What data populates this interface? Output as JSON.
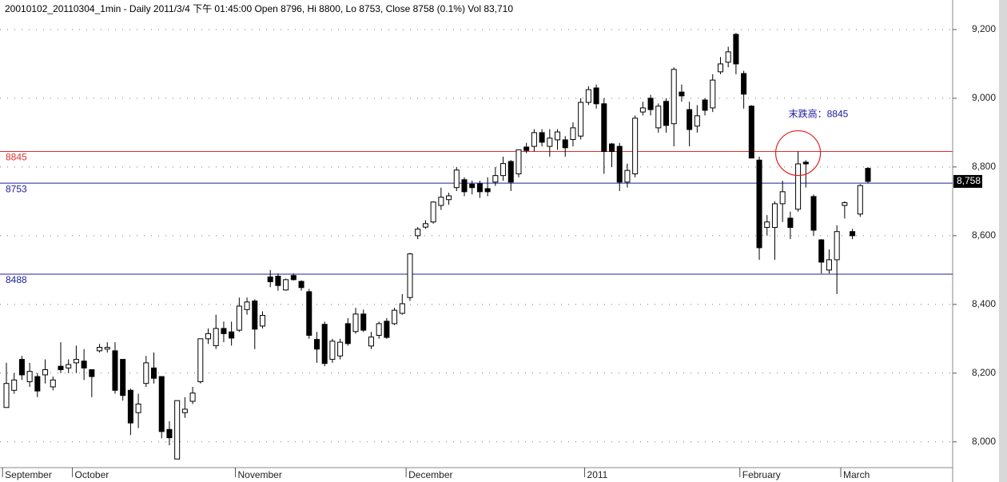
{
  "chart_data": {
    "type": "candlestick",
    "title": "20010102_20110304_1min - Daily 2011/3/4 下午 01:45:00 Open 8796, Hi 8800, Lo 8753, Close 8758 (0.1%) Vol 83,710",
    "categories": [
      "September",
      null,
      null,
      null,
      null,
      null,
      null,
      null,
      null,
      "October",
      null,
      null,
      null,
      null,
      null,
      null,
      null,
      null,
      null,
      null,
      null,
      null,
      null,
      null,
      null,
      null,
      null,
      null,
      null,
      null,
      "November",
      null,
      null,
      null,
      null,
      null,
      null,
      null,
      null,
      null,
      null,
      null,
      null,
      null,
      null,
      null,
      null,
      null,
      null,
      null,
      null,
      null,
      "December",
      null,
      null,
      null,
      null,
      null,
      null,
      null,
      null,
      null,
      null,
      null,
      null,
      null,
      null,
      null,
      null,
      null,
      null,
      null,
      null,
      null,
      null,
      "2011",
      null,
      null,
      null,
      null,
      null,
      null,
      null,
      null,
      null,
      null,
      null,
      null,
      null,
      null,
      null,
      null,
      null,
      null,
      null,
      "February",
      null,
      null,
      null,
      null,
      null,
      null,
      null,
      null,
      null,
      null,
      null,
      null,
      "March",
      null,
      null,
      null
    ],
    "open": [
      8100,
      8150,
      8240,
      8175,
      8190,
      8195,
      8160,
      8220,
      8215,
      8230,
      8235,
      8210,
      8265,
      8270,
      8265,
      8240,
      8150,
      8085,
      8170,
      8215,
      8190,
      8036,
      7950,
      8085,
      8118,
      8175,
      8300,
      8280,
      8330,
      8320,
      8325,
      8385,
      8410,
      8337,
      8480,
      8482,
      8442,
      8484,
      8467,
      8437,
      8298,
      8342,
      8240,
      8250,
      8344,
      8321,
      8372,
      8279,
      8310,
      8351,
      8344,
      8374,
      8420,
      8600,
      8625,
      8640,
      8688,
      8705,
      8740,
      8763,
      8750,
      8751,
      8737,
      8756,
      8775,
      8816,
      8780,
      8858,
      8860,
      8900,
      8860,
      8879,
      8879,
      8880,
      8890,
      8988,
      9030,
      8984,
      8867,
      8860,
      8756,
      8780,
      8960,
      9000,
      8914,
      8991,
      8926,
      9018,
      8967,
      8919,
      8995,
      8972,
      9077,
      9105,
      9186,
      9072,
      8977,
      8820,
      8624,
      8624,
      8693,
      8651,
      8677,
      8814,
      8714,
      8588,
      8500,
      8530,
      8688,
      8612,
      8663,
      8796
    ],
    "high": [
      8230,
      8200,
      8250,
      8230,
      8200,
      8240,
      8190,
      8290,
      8240,
      8280,
      8270,
      8210,
      8285,
      8290,
      8290,
      8240,
      8155,
      8140,
      8250,
      8260,
      8190,
      8060,
      8120,
      8130,
      8160,
      8300,
      8330,
      8370,
      8350,
      8350,
      8420,
      8420,
      8415,
      8380,
      8500,
      8490,
      8475,
      8490,
      8470,
      8445,
      8320,
      8350,
      8300,
      8300,
      8360,
      8390,
      8385,
      8320,
      8350,
      8360,
      8390,
      8430,
      8550,
      8625,
      8645,
      8700,
      8740,
      8725,
      8800,
      8770,
      8760,
      8760,
      8770,
      8800,
      8830,
      8820,
      8850,
      8870,
      8910,
      8910,
      8910,
      8910,
      8890,
      8930,
      9000,
      9035,
      9040,
      9000,
      8870,
      8870,
      8810,
      8950,
      8990,
      9010,
      8985,
      9000,
      9090,
      9040,
      8990,
      8980,
      9000,
      9070,
      9120,
      9150,
      9190,
      9080,
      8980,
      8830,
      8660,
      8700,
      8760,
      8670,
      8845,
      8820,
      8720,
      8590,
      8560,
      8630,
      8700,
      8620,
      8750,
      8800
    ],
    "low": [
      8100,
      8140,
      8180,
      8160,
      8130,
      8170,
      8150,
      8200,
      8200,
      8200,
      8180,
      8130,
      8260,
      8260,
      8140,
      8120,
      8020,
      8040,
      8160,
      8170,
      8010,
      7990,
      7950,
      8070,
      8110,
      8170,
      8285,
      8270,
      8290,
      8280,
      8320,
      8370,
      8270,
      8330,
      8450,
      8440,
      8440,
      8470,
      8440,
      8300,
      8230,
      8220,
      8230,
      8240,
      8280,
      8315,
      8320,
      8270,
      8300,
      8300,
      8340,
      8370,
      8410,
      8590,
      8620,
      8635,
      8675,
      8690,
      8730,
      8715,
      8720,
      8710,
      8715,
      8745,
      8760,
      8730,
      8770,
      8840,
      8845,
      8860,
      8830,
      8850,
      8830,
      8860,
      8880,
      8980,
      8970,
      8780,
      8800,
      8730,
      8740,
      8770,
      8950,
      8950,
      8900,
      8900,
      8860,
      8990,
      8860,
      8900,
      8950,
      8960,
      9070,
      9090,
      9070,
      8970,
      8826,
      8530,
      8600,
      8530,
      8640,
      8590,
      8670,
      8740,
      8600,
      8490,
      8490,
      8430,
      8650,
      8590,
      8655,
      8753
    ],
    "close": [
      8170,
      8180,
      8195,
      8205,
      8148,
      8210,
      8180,
      8210,
      8225,
      8240,
      8215,
      8190,
      8275,
      8275,
      8150,
      8135,
      8055,
      8110,
      8230,
      8185,
      8030,
      8012,
      8120,
      8095,
      8142,
      8300,
      8315,
      8330,
      8315,
      8302,
      8395,
      8407,
      8328,
      8368,
      8466,
      8455,
      8472,
      8472,
      8449,
      8310,
      8270,
      8228,
      8293,
      8290,
      8286,
      8372,
      8325,
      8305,
      8344,
      8304,
      8383,
      8402,
      8547,
      8619,
      8635,
      8698,
      8712,
      8716,
      8791,
      8728,
      8740,
      8728,
      8728,
      8775,
      8810,
      8756,
      8850,
      8848,
      8900,
      8872,
      8884,
      8902,
      8856,
      8914,
      8988,
      9025,
      8984,
      8845,
      8845,
      8756,
      8790,
      8942,
      8972,
      8967,
      8977,
      8921,
      9084,
      9007,
      8909,
      8949,
      8965,
      9053,
      9100,
      9135,
      9100,
      9012,
      8826,
      8565,
      8640,
      8693,
      8728,
      8624,
      8809,
      8809,
      8616,
      8523,
      8530,
      8612,
      8696,
      8600,
      8746,
      8758
    ],
    "ylim": [
      7925,
      9286
    ],
    "yticks": [
      {
        "value": 8000,
        "label": "8,000"
      },
      {
        "value": 8200,
        "label": "8,200"
      },
      {
        "value": 8400,
        "label": "8,400"
      },
      {
        "value": 8600,
        "label": "8,600"
      },
      {
        "value": 8800,
        "label": "8,800"
      },
      {
        "value": 9000,
        "label": "9,000"
      },
      {
        "value": 9200,
        "label": "9,200"
      }
    ],
    "grid": true,
    "reference_lines": [
      {
        "value": 8845,
        "color": "#e03030"
      },
      {
        "value": 8753,
        "color": "#2020a0"
      },
      {
        "value": 8488,
        "color": "#2020a0"
      }
    ],
    "annotation": {
      "text": "末跌高：8845",
      "color": "#1a1aa0",
      "circle_index": 102
    },
    "last_price": {
      "value": 8758,
      "label": "8,758"
    }
  }
}
